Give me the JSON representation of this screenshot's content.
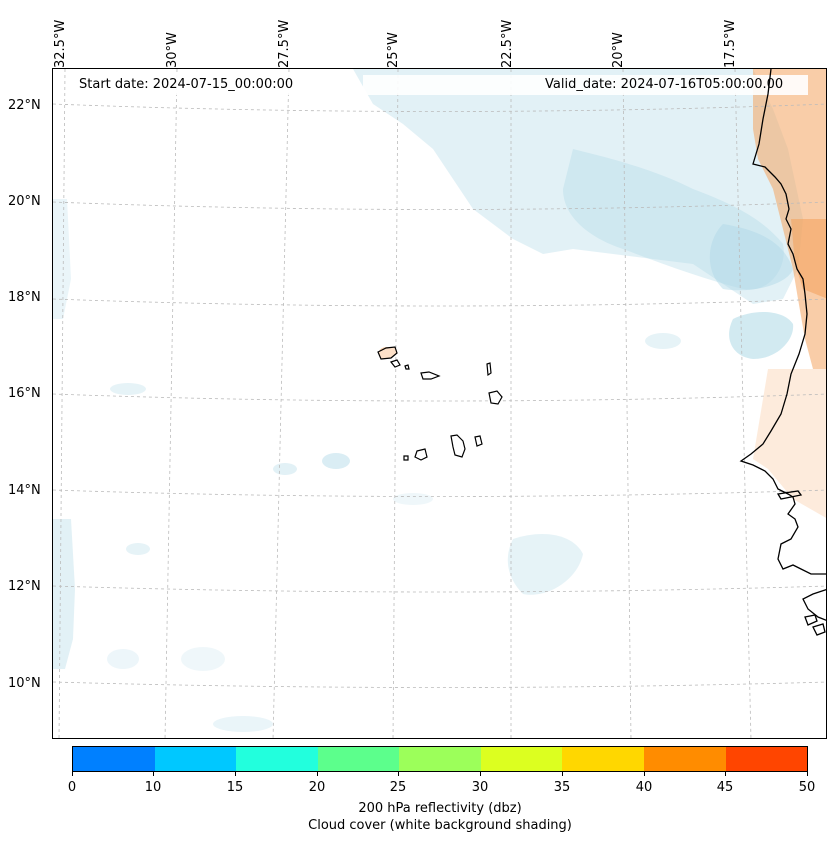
{
  "map": {
    "start_date": "Start date: 2024-07-15_00:00:00",
    "valid_date": "Valid_date: 2024-07-16T05:00:00.00",
    "lon_labels": [
      "32.5°W",
      "30°W",
      "27.5°W",
      "25°W",
      "22.5°W",
      "20°W",
      "17.5°W"
    ],
    "lat_labels": [
      "22°N",
      "20°N",
      "18°N",
      "16°N",
      "14°N",
      "12°N",
      "10°N"
    ],
    "colors": {
      "cloud": "#add8e6",
      "warm": "#f4a460",
      "coast": "#000000",
      "grid": "#bbbbbb"
    }
  },
  "colorbar": {
    "ticks": [
      "0",
      "10",
      "15",
      "20",
      "25",
      "30",
      "35",
      "40",
      "45",
      "50"
    ],
    "colors": [
      "#0080ff",
      "#00c8ff",
      "#22ffdd",
      "#5cff8c",
      "#9cff5a",
      "#dcff20",
      "#ffd700",
      "#ff8c00",
      "#ff4500"
    ],
    "label_line1": "200 hPa reflectivity (dbz)",
    "label_line2": "Cloud cover (white background shading)"
  }
}
